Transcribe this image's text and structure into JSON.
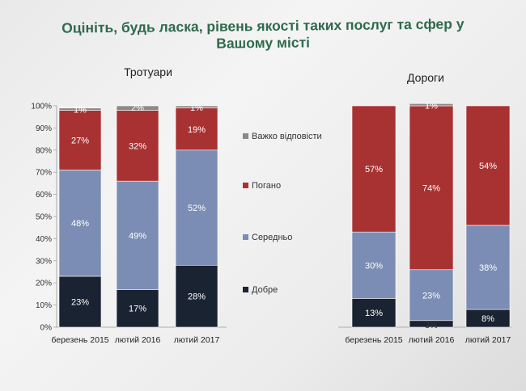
{
  "title": "Оцініть, будь ласка, рівень якості таких послуг та сфер у Вашому місті",
  "colors": {
    "good": "#1a2331",
    "medium": "#7b8db4",
    "bad": "#a83232",
    "hard": "#8a8a8a"
  },
  "chart_data": [
    {
      "type": "bar",
      "stacked": true,
      "title": "Тротуари",
      "categories": [
        "березень 2015",
        "лютий 2016",
        "лютий 2017"
      ],
      "y_ticks": [
        "0%",
        "10%",
        "20%",
        "30%",
        "40%",
        "50%",
        "60%",
        "70%",
        "80%",
        "90%",
        "100%"
      ],
      "ylim": [
        0,
        100
      ],
      "series": [
        {
          "name": "Добре",
          "values": [
            23,
            17,
            28
          ],
          "labels": [
            "23%",
            "17%",
            "28%"
          ]
        },
        {
          "name": "Середньо",
          "values": [
            48,
            49,
            52
          ],
          "labels": [
            "48%",
            "49%",
            "52%"
          ]
        },
        {
          "name": "Погано",
          "values": [
            27,
            32,
            19
          ],
          "labels": [
            "27%",
            "32%",
            "19%"
          ]
        },
        {
          "name": "Важко відповісти",
          "values": [
            1,
            2,
            1
          ],
          "labels": [
            "1%",
            "2%",
            "1%"
          ]
        }
      ]
    },
    {
      "type": "bar",
      "stacked": true,
      "title": "Дороги",
      "categories": [
        "березень 2015",
        "лютий 2016",
        "лютий 2017"
      ],
      "ylim": [
        0,
        100
      ],
      "series": [
        {
          "name": "Добре",
          "values": [
            13,
            3,
            8
          ],
          "labels": [
            "13%",
            "3%",
            "8%"
          ]
        },
        {
          "name": "Середньо",
          "values": [
            30,
            23,
            38
          ],
          "labels": [
            "30%",
            "23%",
            "38%"
          ]
        },
        {
          "name": "Погано",
          "values": [
            57,
            74,
            54
          ],
          "labels": [
            "57%",
            "74%",
            "54%"
          ]
        },
        {
          "name": "Важко відповісти",
          "values": [
            0,
            1,
            0
          ],
          "labels": [
            "",
            "1%",
            ""
          ]
        }
      ]
    }
  ],
  "legend": [
    "Важко відповісти",
    "Погано",
    "Середньо",
    "Добре"
  ]
}
